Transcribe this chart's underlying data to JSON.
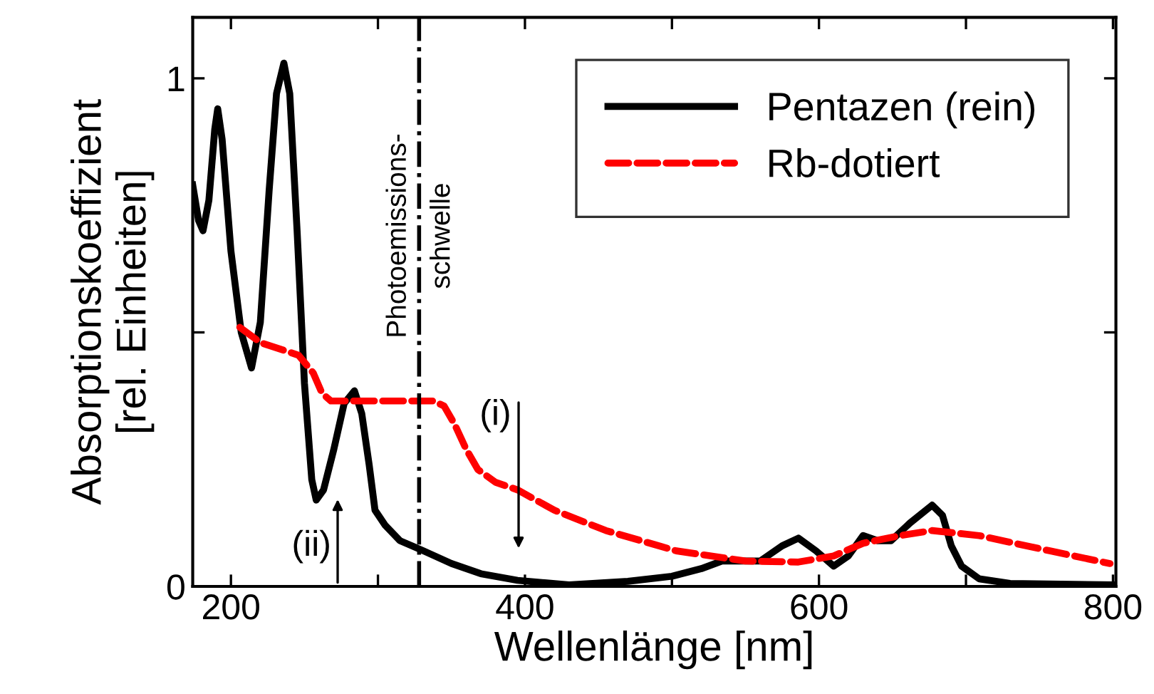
{
  "chart_data": {
    "type": "line",
    "xlabel": "Wellenlänge [nm]",
    "ylabel": "Absorptionskoeffizient\n[rel. Einheiten]",
    "xlim": [
      174,
      802
    ],
    "ylim": [
      0,
      1.12
    ],
    "xticks": [
      200,
      {
        "value": 300,
        "label": null
      },
      400,
      {
        "value": 500,
        "label": null
      },
      600,
      {
        "value": 700,
        "label": null
      },
      800
    ],
    "yticks": [
      0,
      {
        "value": 0.5,
        "label": null
      },
      1
    ],
    "grid": false,
    "legend": "top right",
    "marker": "none",
    "series": [
      {
        "name": "Pentazen (rein)",
        "color": "#000000",
        "line_style": "solid",
        "x": [
          174,
          178,
          181,
          185,
          189,
          191,
          194,
          200,
          207,
          214,
          220,
          226,
          231,
          236,
          240,
          245,
          250,
          255,
          258,
          263,
          270,
          277,
          284,
          289,
          294,
          298,
          305,
          315,
          331,
          350,
          370,
          395,
          430,
          470,
          500,
          520,
          534,
          560,
          575,
          586,
          598,
          610,
          620,
          630,
          640,
          649,
          662,
          677,
          684,
          690,
          697,
          709,
          730,
          800
        ],
        "values": [
          0.79,
          0.72,
          0.7,
          0.76,
          0.9,
          0.94,
          0.88,
          0.66,
          0.5,
          0.43,
          0.52,
          0.78,
          0.97,
          1.03,
          0.97,
          0.7,
          0.4,
          0.21,
          0.17,
          0.19,
          0.27,
          0.36,
          0.385,
          0.34,
          0.24,
          0.15,
          0.12,
          0.09,
          0.07,
          0.045,
          0.025,
          0.012,
          0.003,
          0.01,
          0.02,
          0.035,
          0.05,
          0.05,
          0.08,
          0.095,
          0.07,
          0.04,
          0.06,
          0.1,
          0.09,
          0.09,
          0.125,
          0.16,
          0.14,
          0.08,
          0.04,
          0.015,
          0.006,
          0.003
        ]
      },
      {
        "name": "Rb-dotiert",
        "color": "#ff0000",
        "line_style": "dashed",
        "x": [
          206,
          220,
          246,
          256,
          262,
          268,
          300,
          338,
          345,
          352,
          360,
          368,
          380,
          395,
          420,
          455,
          503,
          550,
          586,
          610,
          630,
          655,
          677,
          709,
          757,
          798
        ],
        "values": [
          0.51,
          0.48,
          0.455,
          0.42,
          0.38,
          0.365,
          0.365,
          0.365,
          0.355,
          0.32,
          0.27,
          0.23,
          0.205,
          0.19,
          0.15,
          0.11,
          0.07,
          0.05,
          0.048,
          0.06,
          0.085,
          0.1,
          0.11,
          0.1,
          0.07,
          0.045
        ]
      }
    ],
    "ref_lines": [
      {
        "axis": "x",
        "value": 328,
        "label": "Photoemissions-\nschwelle",
        "color": "#000000",
        "line_style": "dashdot"
      }
    ],
    "annotations": [
      "(i)",
      "(ii)"
    ]
  }
}
